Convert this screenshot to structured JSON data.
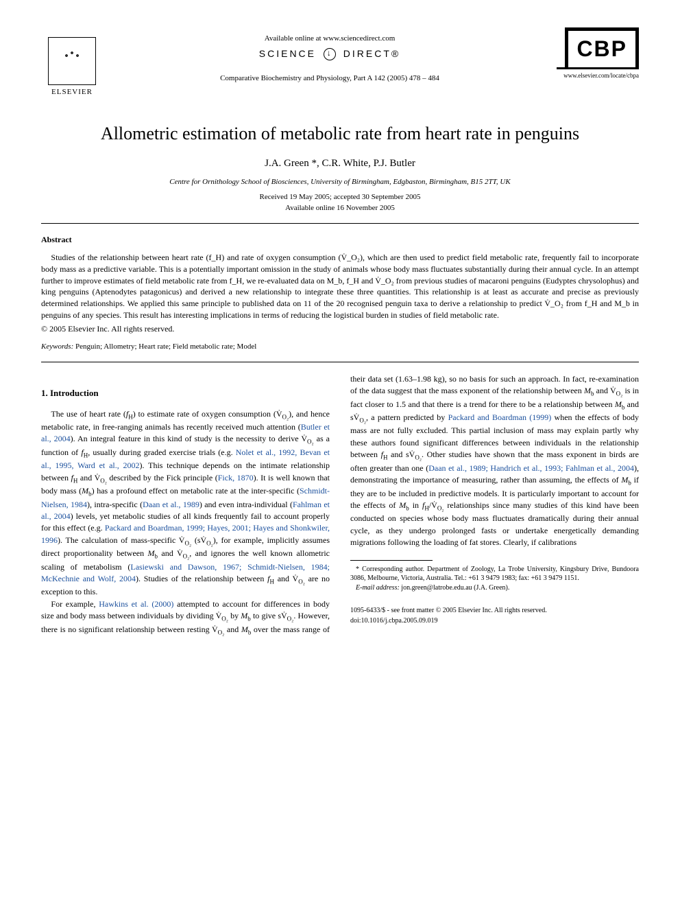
{
  "header": {
    "available_online": "Available online at www.sciencedirect.com",
    "science_direct_left": "SCIENCE",
    "science_direct_right": "DIRECT®",
    "journal_ref": "Comparative Biochemistry and Physiology, Part A 142 (2005) 478 – 484",
    "elsevier_label": "ELSEVIER",
    "cbp_label": "CBP",
    "cbp_url": "www.elsevier.com/locate/cbpa"
  },
  "title": "Allometric estimation of metabolic rate from heart rate in penguins",
  "authors": "J.A. Green *, C.R. White, P.J. Butler",
  "affiliation": "Centre for Ornithology School of Biosciences, University of Birmingham, Edgbaston, Birmingham, B15 2TT, UK",
  "dates_line1": "Received 19 May 2005; accepted 30 September 2005",
  "dates_line2": "Available online 16 November 2005",
  "abstract": {
    "heading": "Abstract",
    "body": "Studies of the relationship between heart rate (f_H) and rate of oxygen consumption (V̇_O₂), which are then used to predict field metabolic rate, frequently fail to incorporate body mass as a predictive variable. This is a potentially important omission in the study of animals whose body mass fluctuates substantially during their annual cycle. In an attempt further to improve estimates of field metabolic rate from f_H, we re-evaluated data on M_b, f_H and V̇_O₂ from previous studies of macaroni penguins (Eudyptes chrysolophus) and king penguins (Aptenodytes patagonicus) and derived a new relationship to integrate these three quantities. This relationship is at least as accurate and precise as previously determined relationships. We applied this same principle to published data on 11 of the 20 recognised penguin taxa to derive a relationship to predict V̇_O₂ from f_H and M_b in penguins of any species. This result has interesting implications in terms of reducing the logistical burden in studies of field metabolic rate.",
    "copyright": "© 2005 Elsevier Inc. All rights reserved."
  },
  "keywords": {
    "label": "Keywords:",
    "text": " Penguin; Allometry; Heart rate; Field metabolic rate; Model"
  },
  "section1": {
    "heading": "1. Introduction",
    "col1_parts": {
      "p1a": "The use of heart rate (",
      "fh1": "f",
      "fh1sub": "H",
      "p1b": ") to estimate rate of oxygen consumption (V̇",
      "o2_1": "O₂",
      "p1c": "), and hence metabolic rate, in free-ranging animals has recently received much attention (",
      "cite1": "Butler et al., 2004",
      "p1d": "). An integral feature in this kind of study is the necessity to derive V̇",
      "o2_2": "O₂",
      "p1e": " as a function of ",
      "fh2": "f",
      "fh2sub": "H",
      "p1f": ", usually during graded exercise trials (e.g. ",
      "cite2": "Nolet et al., 1992, Bevan et al., 1995, Ward et al., 2002",
      "p1g": "). This technique depends on the intimate relationship between ",
      "fh3": "f",
      "fh3sub": "H",
      "p1h": " and V̇",
      "o2_3": "O₂",
      "p1i": " described by the Fick principle (",
      "cite3": "Fick, 1870",
      "p1j": "). It is well known that body mass (",
      "mb1": "M",
      "mb1sub": "b",
      "p1k": ") has a profound effect on metabolic rate at the inter-specific (",
      "cite4": "Schmidt-Nielsen, 1984",
      "p1l": "), intra-specific (",
      "cite5": "Daan et al., 1989",
      "p1m": ") and even intra-individual (",
      "cite6": "Fahlman et al., 2004",
      "p1n": ") levels, yet metabolic studies of all kinds frequently fail to account properly for this effect (e.g. ",
      "cite7": "Packard and Boardman, 1999; Hayes, 2001; Hayes and Shonkwiler, 1996",
      "p1o": "). The calculation of mass-specific V̇",
      "o2_4": "O₂",
      "p1p": " (sV̇",
      "o2_5": "O₂",
      "p1q": "), for example, implicitly assumes direct proportionality between ",
      "mb2": "M",
      "mb2sub": "b",
      "p1r": " and V̇",
      "o2_6": "O₂",
      "p1s": ", and ignores the well known allometric scaling of metabolism (",
      "cite8": "Lasiewski and Dawson, 1967; Schmidt-Nielsen,"
    },
    "col2_parts": {
      "cite8b": "1984; McKechnie and Wolf, 2004",
      "p2a": "). Studies of the relationship between ",
      "fh4": "f",
      "fh4sub": "H",
      "p2b": " and V̇",
      "o2_7": "O₂",
      "p2c": " are no exception to this.",
      "p3a": "For example, ",
      "cite9": "Hawkins et al. (2000)",
      "p3b": " attempted to account for differences in body size and body mass between individuals by dividing V̇",
      "o2_8": "O₂",
      "p3c": " by ",
      "mb3": "M",
      "mb3sub": "b",
      "p3d": " to give sV̇",
      "o2_9": "O₂",
      "p3e": ". However, there is no significant relationship between resting V̇",
      "o2_10": "O₂",
      "p3f": " and ",
      "mb4": "M",
      "mb4sub": "b",
      "p3g": " over the mass range of their data set (1.63–1.98 kg), so no basis for such an approach. In fact, re-examination of the data suggest that the mass exponent of the relationship between ",
      "mb5": "M",
      "mb5sub": "b",
      "p3h": " and V̇",
      "o2_11": "O₂",
      "p3i": " is in fact closer to 1.5 and that there is a trend for there to be a relationship between ",
      "mb6": "M",
      "mb6sub": "b",
      "p3j": " and sV̇",
      "o2_12": "O₂",
      "p3k": ", a pattern predicted by ",
      "cite10": "Packard and Boardman (1999)",
      "p3l": " when the effects of body mass are not fully excluded. This partial inclusion of mass may explain partly why these authors found significant differences between individuals in the relationship between ",
      "fh5": "f",
      "fh5sub": "H",
      "p3m": " and sV̇",
      "o2_13": "O₂",
      "p3n": ". Other studies have shown that the mass exponent in birds are often greater than one (",
      "cite11": "Daan et al., 1989; Handrich et al., 1993; Fahlman et al., 2004",
      "p3o": "), demonstrating the importance of measuring, rather than assuming, the effects of ",
      "mb7": "M",
      "mb7sub": "b",
      "p3p": " if they are to be included in predictive models. It is particularly important to account for the effects of ",
      "mb8": "M",
      "mb8sub": "b",
      "p3q": " in ",
      "fh6": "f",
      "fh6sub": "H",
      "p3r": "/V̇",
      "o2_14": "O₂",
      "p3s": " relationships since many studies of this kind have been conducted on species whose body mass fluctuates dramatically during their annual cycle, as they undergo prolonged fasts or undertake energetically demanding migrations following the loading of fat stores. Clearly, if calibrations"
    }
  },
  "footnote": {
    "corr": "* Corresponding author. Department of Zoology, La Trobe University, Kingsbury Drive, Bundoora 3086, Melbourne, Victoria, Australia. Tel.: +61 3 9479 1983; fax: +61 3 9479 1151.",
    "email_label": "E-mail address:",
    "email": " jon.green@latrobe.edu.au (J.A. Green)."
  },
  "doi": {
    "line1": "1095-6433/$ - see front matter © 2005 Elsevier Inc. All rights reserved.",
    "line2": "doi:10.1016/j.cbpa.2005.09.019"
  },
  "colors": {
    "citation": "#1a4f9c",
    "text": "#000000",
    "background": "#ffffff"
  },
  "typography": {
    "title_fontsize": 26,
    "body_fontsize": 12,
    "abstract_fontsize": 12,
    "footnote_fontsize": 10
  }
}
